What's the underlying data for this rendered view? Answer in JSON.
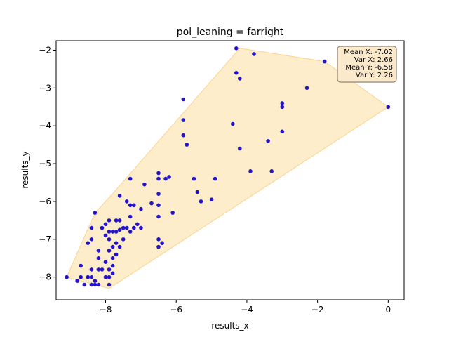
{
  "chart_data": {
    "type": "scatter",
    "title": "pol_leaning = farright",
    "xlabel": "results_x",
    "ylabel": "results_y",
    "xlim": [
      -9.4,
      0.45
    ],
    "ylim": [
      -8.6,
      -1.75
    ],
    "xticks": [
      -8,
      -6,
      -4,
      -2,
      0
    ],
    "yticks": [
      -8,
      -7,
      -6,
      -5,
      -4,
      -3,
      -2
    ],
    "grid": false,
    "point_color": "#2414c8",
    "hull_fill": "#fde1a8",
    "hull_stroke": "#fbd38d",
    "hull": [
      [
        -9.1,
        -8.0
      ],
      [
        -7.9,
        -8.3
      ],
      [
        0.0,
        -3.5
      ],
      [
        -1.8,
        -2.3
      ],
      [
        -4.2,
        -1.95
      ],
      [
        -7.9,
        -5.9
      ],
      [
        -8.3,
        -6.3
      ]
    ],
    "stats": {
      "lines": [
        "Mean X: -7.02",
        "Var X: 2.66",
        "Mean Y: -6.58",
        "Var Y: 2.26"
      ],
      "placement": "top-right"
    },
    "points": [
      [
        -9.1,
        -8.0
      ],
      [
        -8.8,
        -8.1
      ],
      [
        -8.7,
        -7.7
      ],
      [
        -8.7,
        -8.0
      ],
      [
        -8.6,
        -8.2
      ],
      [
        -8.5,
        -7.1
      ],
      [
        -8.5,
        -8.0
      ],
      [
        -8.4,
        -6.7
      ],
      [
        -8.4,
        -7.0
      ],
      [
        -8.4,
        -7.8
      ],
      [
        -8.4,
        -8.0
      ],
      [
        -8.4,
        -8.2
      ],
      [
        -8.3,
        -6.3
      ],
      [
        -8.3,
        -8.1
      ],
      [
        -8.3,
        -8.2
      ],
      [
        -8.2,
        -7.3
      ],
      [
        -8.2,
        -7.5
      ],
      [
        -8.2,
        -7.8
      ],
      [
        -8.2,
        -8.2
      ],
      [
        -8.1,
        -6.7
      ],
      [
        -8.1,
        -7.8
      ],
      [
        -8.0,
        -6.6
      ],
      [
        -8.0,
        -6.9
      ],
      [
        -8.0,
        -7.6
      ],
      [
        -8.0,
        -8.0
      ],
      [
        -7.9,
        -6.5
      ],
      [
        -7.9,
        -6.8
      ],
      [
        -7.9,
        -7.0
      ],
      [
        -7.9,
        -7.3
      ],
      [
        -7.9,
        -7.8
      ],
      [
        -7.9,
        -8.0
      ],
      [
        -7.9,
        -8.2
      ],
      [
        -7.8,
        -6.8
      ],
      [
        -7.8,
        -7.2
      ],
      [
        -7.8,
        -7.5
      ],
      [
        -7.8,
        -7.7
      ],
      [
        -7.8,
        -7.9
      ],
      [
        -7.7,
        -6.5
      ],
      [
        -7.7,
        -6.8
      ],
      [
        -7.7,
        -7.1
      ],
      [
        -7.7,
        -7.4
      ],
      [
        -7.6,
        -5.85
      ],
      [
        -7.6,
        -6.5
      ],
      [
        -7.6,
        -6.75
      ],
      [
        -7.6,
        -7.2
      ],
      [
        -7.5,
        -6.7
      ],
      [
        -7.5,
        -7.0
      ],
      [
        -7.4,
        -6.0
      ],
      [
        -7.4,
        -6.7
      ],
      [
        -7.3,
        -5.4
      ],
      [
        -7.3,
        -6.1
      ],
      [
        -7.3,
        -6.4
      ],
      [
        -7.3,
        -6.8
      ],
      [
        -7.2,
        -6.1
      ],
      [
        -7.2,
        -6.7
      ],
      [
        -7.1,
        -6.6
      ],
      [
        -7.0,
        -6.2
      ],
      [
        -7.0,
        -6.7
      ],
      [
        -6.9,
        -5.55
      ],
      [
        -6.7,
        -6.05
      ],
      [
        -6.5,
        -5.25
      ],
      [
        -6.5,
        -5.4
      ],
      [
        -6.5,
        -5.8
      ],
      [
        -6.5,
        -6.1
      ],
      [
        -6.5,
        -6.4
      ],
      [
        -6.5,
        -7.0
      ],
      [
        -6.5,
        -7.2
      ],
      [
        -6.4,
        -7.1
      ],
      [
        -6.3,
        -5.4
      ],
      [
        -6.2,
        -5.35
      ],
      [
        -6.1,
        -6.3
      ],
      [
        -5.8,
        -3.3
      ],
      [
        -5.8,
        -3.85
      ],
      [
        -5.8,
        -4.25
      ],
      [
        -5.7,
        -4.5
      ],
      [
        -5.5,
        -5.4
      ],
      [
        -5.4,
        -5.75
      ],
      [
        -5.3,
        -6.0
      ],
      [
        -5.0,
        -5.95
      ],
      [
        -4.9,
        -5.4
      ],
      [
        -4.4,
        -3.95
      ],
      [
        -4.3,
        -1.95
      ],
      [
        -4.3,
        -2.6
      ],
      [
        -4.2,
        -2.75
      ],
      [
        -4.2,
        -4.6
      ],
      [
        -3.9,
        -5.2
      ],
      [
        -3.8,
        -2.1
      ],
      [
        -3.4,
        -4.4
      ],
      [
        -3.3,
        -5.2
      ],
      [
        -3.0,
        -3.4
      ],
      [
        -3.0,
        -3.5
      ],
      [
        -3.0,
        -4.15
      ],
      [
        -2.3,
        -3.0
      ],
      [
        -1.8,
        -2.3
      ],
      [
        0.0,
        -3.5
      ]
    ]
  }
}
